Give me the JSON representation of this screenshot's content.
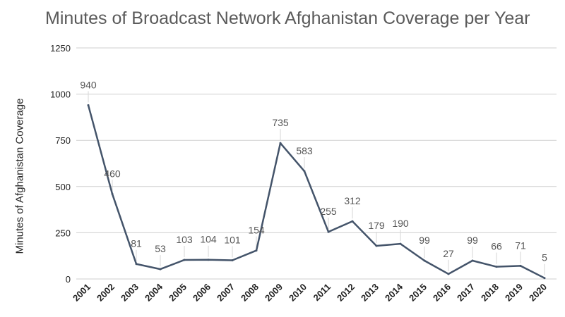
{
  "chart_data": {
    "type": "line",
    "title": "Minutes of Broadcast Network Afghanistan Coverage per Year",
    "xlabel": "",
    "ylabel": "Minutes of Afghanistan Coverage",
    "ylim": [
      0,
      1250
    ],
    "yticks": [
      0,
      250,
      500,
      750,
      1000,
      1250
    ],
    "grid": true,
    "categories": [
      "2001",
      "2002",
      "2003",
      "2004",
      "2005",
      "2006",
      "2007",
      "2008",
      "2009",
      "2010",
      "2011",
      "2012",
      "2013",
      "2014",
      "2015",
      "2016",
      "2017",
      "2018",
      "2019",
      "2020"
    ],
    "series": [
      {
        "values": [
          940,
          460,
          81,
          53,
          103,
          104,
          101,
          154,
          735,
          583,
          255,
          312,
          179,
          190,
          99,
          27,
          99,
          66,
          71,
          5
        ],
        "color": "#44546a"
      }
    ],
    "data_labels": true
  }
}
